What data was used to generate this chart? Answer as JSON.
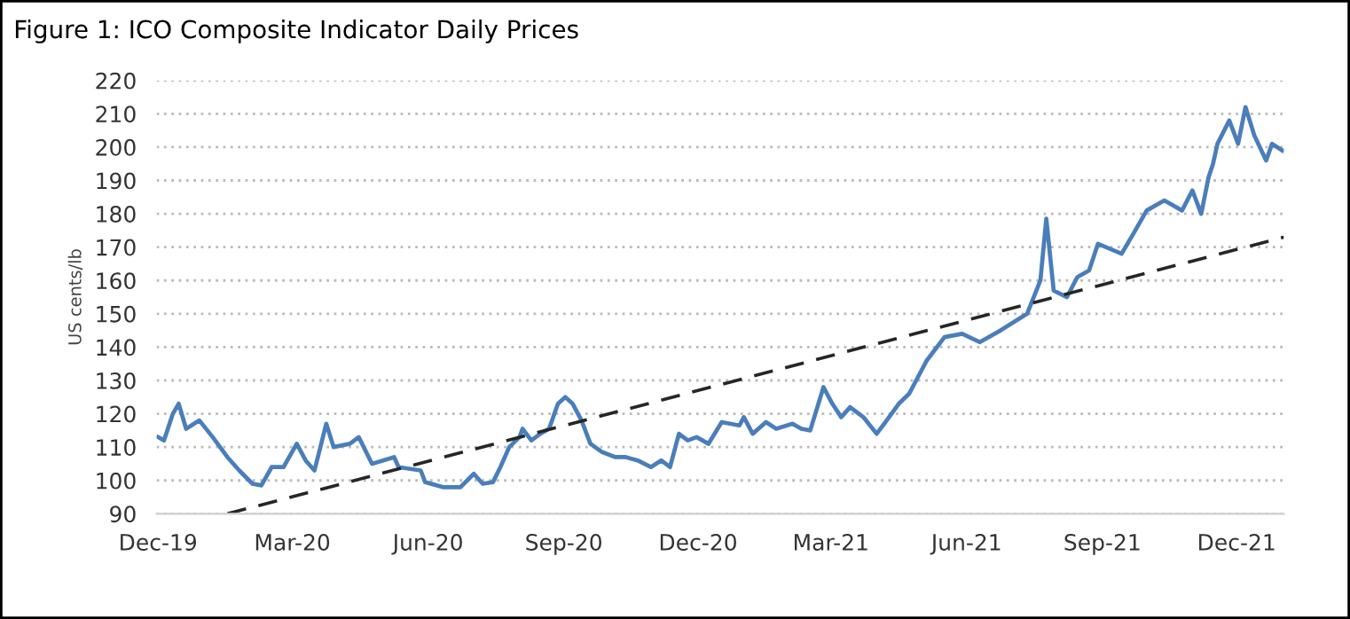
{
  "chart_data": {
    "type": "line",
    "title": "Figure 1: ICO Composite Indicator Daily Prices",
    "ylabel": "US cents/lb",
    "xlim": [
      "2019-11-30",
      "2022-01-02"
    ],
    "ylim": [
      90,
      220
    ],
    "yticks": [
      90,
      100,
      110,
      120,
      130,
      140,
      150,
      160,
      170,
      180,
      190,
      200,
      210,
      220
    ],
    "xticks": [
      {
        "value": "2019-12-01",
        "label": "Dec-19"
      },
      {
        "value": "2020-03-01",
        "label": "Mar-20"
      },
      {
        "value": "2020-06-01",
        "label": "Jun-20"
      },
      {
        "value": "2020-09-01",
        "label": "Sep-20"
      },
      {
        "value": "2020-12-01",
        "label": "Dec-20"
      },
      {
        "value": "2021-03-01",
        "label": "Mar-21"
      },
      {
        "value": "2021-06-01",
        "label": "Jun-21"
      },
      {
        "value": "2021-09-01",
        "label": "Sep-21"
      },
      {
        "value": "2021-12-01",
        "label": "Dec-21"
      }
    ],
    "grid": "y",
    "series": [
      {
        "color": "#4a7ebb",
        "line_style": "solid",
        "x": [
          "2019-12-01",
          "2019-12-05",
          "2019-12-11",
          "2019-12-15",
          "2019-12-20",
          "2019-12-29",
          "2020-01-07",
          "2020-01-17",
          "2020-01-25",
          "2020-02-03",
          "2020-02-09",
          "2020-02-16",
          "2020-02-24",
          "2020-03-04",
          "2020-03-10",
          "2020-03-16",
          "2020-03-24",
          "2020-03-29",
          "2020-04-09",
          "2020-04-15",
          "2020-04-24",
          "2020-05-09",
          "2020-05-12",
          "2020-05-27",
          "2020-05-30",
          "2020-06-11",
          "2020-06-23",
          "2020-07-02",
          "2020-07-08",
          "2020-07-15",
          "2020-07-20",
          "2020-07-26",
          "2020-08-02",
          "2020-08-04",
          "2020-08-10",
          "2020-08-16",
          "2020-08-22",
          "2020-08-28",
          "2020-09-02",
          "2020-09-07",
          "2020-09-13",
          "2020-09-19",
          "2020-09-27",
          "2020-10-06",
          "2020-10-13",
          "2020-10-21",
          "2020-10-30",
          "2020-11-06",
          "2020-11-12",
          "2020-11-18",
          "2020-11-24",
          "2020-11-30",
          "2020-12-08",
          "2020-12-17",
          "2020-12-29",
          "2021-01-01",
          "2021-01-07",
          "2021-01-16",
          "2021-01-23",
          "2021-02-03",
          "2021-02-09",
          "2021-02-15",
          "2021-02-24",
          "2021-03-02",
          "2021-03-08",
          "2021-03-14",
          "2021-03-23",
          "2021-04-01",
          "2021-04-07",
          "2021-04-16",
          "2021-04-23",
          "2021-04-29",
          "2021-05-05",
          "2021-05-17",
          "2021-05-29",
          "2021-06-10",
          "2021-06-24",
          "2021-07-12",
          "2021-07-21",
          "2021-07-25",
          "2021-07-30",
          "2021-08-08",
          "2021-08-15",
          "2021-08-23",
          "2021-08-29",
          "2021-09-14",
          "2021-09-22",
          "2021-10-01",
          "2021-10-13",
          "2021-10-25",
          "2021-11-01",
          "2021-11-07",
          "2021-11-12",
          "2021-11-15",
          "2021-11-18",
          "2021-11-26",
          "2021-12-02",
          "2021-12-07",
          "2021-12-13",
          "2021-12-21",
          "2021-12-25",
          "2022-01-01"
        ],
        "values": [
          113,
          112,
          120,
          123,
          115.5,
          118,
          113,
          107,
          103,
          99,
          98.5,
          104,
          104,
          111,
          106,
          103,
          117,
          110,
          111,
          113,
          105,
          107,
          104,
          103,
          99.5,
          98,
          98,
          102,
          99,
          99.5,
          104,
          110,
          113,
          115.5,
          112,
          114,
          115.5,
          123,
          125,
          123,
          118,
          111,
          108.5,
          107,
          107,
          106,
          104,
          106,
          104,
          114,
          112,
          113,
          111,
          117.5,
          116.5,
          119,
          114,
          117.5,
          115.5,
          117,
          115.5,
          115,
          128,
          123,
          119,
          122,
          119,
          114,
          117.5,
          123,
          126,
          131,
          136,
          143,
          144,
          141.5,
          145,
          150,
          160,
          178.5,
          157,
          155,
          161,
          163,
          171,
          168,
          174,
          181,
          184,
          181,
          187,
          180,
          191,
          195,
          201,
          208,
          201,
          212,
          203.5,
          196,
          201,
          199
        ]
      },
      {
        "color": "#262626",
        "line_style": "dashed",
        "x": [
          "2020-01-17",
          "2022-01-02"
        ],
        "values": [
          90,
          173
        ]
      }
    ]
  }
}
